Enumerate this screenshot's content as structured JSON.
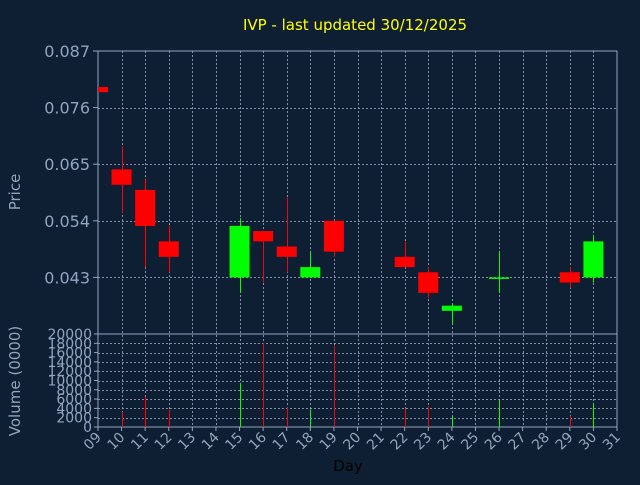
{
  "colors": {
    "background": "#0f1f33",
    "plot_border": "#8fa4bf",
    "axis_text": "#8fa4bf",
    "grid": "#8fa4bf",
    "title": "#ffff00",
    "up": "#00ff00",
    "down": "#ff0000"
  },
  "chart_data": {
    "type": "candlestick",
    "title": "IVP - last updated 30/12/2025",
    "price_axis": {
      "label": "Price",
      "range": [
        0.032,
        0.087
      ],
      "ticks": [
        0.043,
        0.054,
        0.065,
        0.076,
        0.087
      ],
      "tick_labels": [
        "0.043",
        "0.054",
        "0.065",
        "0.076",
        "0.087"
      ]
    },
    "volume_axis": {
      "label": "Volume (0000)",
      "range": [
        0,
        20000
      ],
      "ticks": [
        0,
        2000,
        4000,
        6000,
        8000,
        10000,
        12000,
        14000,
        16000,
        18000,
        20000
      ],
      "tick_labels": [
        "0",
        "2000",
        "4000",
        "6000",
        "8000",
        "10000",
        "12000",
        "14000",
        "16000",
        "18000",
        "20000"
      ]
    },
    "x_axis": {
      "label": "Day",
      "range": [
        9,
        31
      ],
      "ticks": [
        9,
        10,
        11,
        12,
        13,
        14,
        15,
        16,
        17,
        18,
        19,
        20,
        21,
        22,
        23,
        24,
        25,
        26,
        27,
        28,
        29,
        30,
        31
      ],
      "tick_labels": [
        "09",
        "10",
        "11",
        "12",
        "13",
        "14",
        "15",
        "16",
        "17",
        "18",
        "19",
        "20",
        "21",
        "22",
        "23",
        "24",
        "25",
        "26",
        "27",
        "28",
        "29",
        "30",
        "31"
      ]
    },
    "grid": true,
    "candles": [
      {
        "day": 9,
        "open": 0.08,
        "close": 0.079,
        "high": 0.08,
        "low": 0.079,
        "volume": 0
      },
      {
        "day": 10,
        "open": 0.064,
        "close": 0.061,
        "high": 0.0685,
        "low": 0.0555,
        "volume": 3200
      },
      {
        "day": 11,
        "open": 0.06,
        "close": 0.053,
        "high": 0.062,
        "low": 0.045,
        "volume": 6500
      },
      {
        "day": 12,
        "open": 0.05,
        "close": 0.047,
        "high": 0.053,
        "low": 0.044,
        "volume": 3700
      },
      {
        "day": 15,
        "open": 0.043,
        "close": 0.053,
        "high": 0.0545,
        "low": 0.04,
        "volume": 9500
      },
      {
        "day": 16,
        "open": 0.052,
        "close": 0.05,
        "high": 0.052,
        "low": 0.042,
        "volume": 18000
      },
      {
        "day": 17,
        "open": 0.049,
        "close": 0.047,
        "high": 0.0585,
        "low": 0.044,
        "volume": 4200
      },
      {
        "day": 18,
        "open": 0.043,
        "close": 0.045,
        "high": 0.048,
        "low": 0.043,
        "volume": 3800
      },
      {
        "day": 19,
        "open": 0.054,
        "close": 0.048,
        "high": 0.054,
        "low": 0.047,
        "volume": 17600
      },
      {
        "day": 22,
        "open": 0.047,
        "close": 0.045,
        "high": 0.05,
        "low": 0.045,
        "volume": 4000
      },
      {
        "day": 23,
        "open": 0.044,
        "close": 0.04,
        "high": 0.045,
        "low": 0.039,
        "volume": 4500
      },
      {
        "day": 24,
        "open": 0.0365,
        "close": 0.0375,
        "high": 0.038,
        "low": 0.034,
        "volume": 2200
      },
      {
        "day": 26,
        "open": 0.043,
        "close": 0.043,
        "high": 0.048,
        "low": 0.04,
        "volume": 5800
      },
      {
        "day": 29,
        "open": 0.044,
        "close": 0.042,
        "high": 0.045,
        "low": 0.041,
        "volume": 2400
      },
      {
        "day": 30,
        "open": 0.043,
        "close": 0.05,
        "high": 0.051,
        "low": 0.042,
        "volume": 5000
      }
    ]
  }
}
